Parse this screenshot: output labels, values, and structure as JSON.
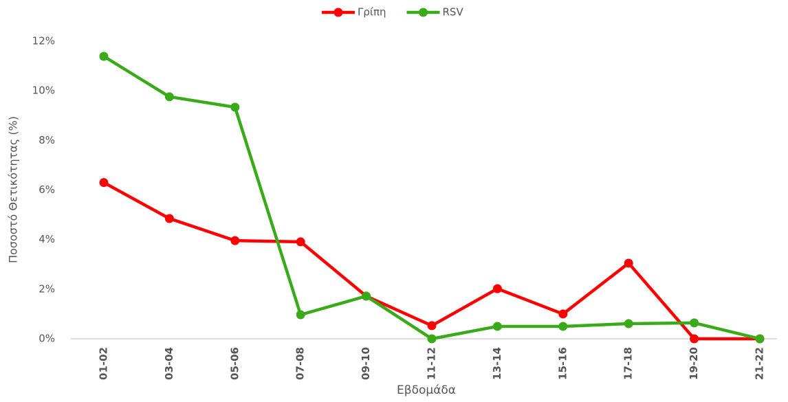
{
  "chart_data": {
    "type": "line",
    "x_label": "Εβδομάδα",
    "y_label": "Ποσοστό Θετικότητας (%)",
    "categories": [
      "01-02",
      "03-04",
      "05-06",
      "07-08",
      "09-10",
      "11-12",
      "13-14",
      "15-16",
      "17-18",
      "19-20",
      "21-22"
    ],
    "series": [
      {
        "name": "Γρίπη",
        "color": "#ff0000",
        "values": [
          6.3,
          4.85,
          3.96,
          3.91,
          1.72,
          0.53,
          2.02,
          1.0,
          3.05,
          0,
          0
        ]
      },
      {
        "name": "RSV",
        "color": "#3aaa1a",
        "values": [
          11.39,
          9.76,
          9.34,
          0.97,
          1.72,
          0,
          0.5,
          0.5,
          0.61,
          0.64,
          0
        ]
      }
    ],
    "ylim": [
      0,
      12
    ],
    "yticks": [
      {
        "value": 0,
        "label": "0%"
      },
      {
        "value": 2,
        "label": "2%"
      },
      {
        "value": 4,
        "label": "4%"
      },
      {
        "value": 6,
        "label": "6%"
      },
      {
        "value": 8,
        "label": "8%"
      },
      {
        "value": 10,
        "label": "10%"
      },
      {
        "value": 12,
        "label": "12%"
      }
    ],
    "grid": false,
    "legend": "top"
  }
}
